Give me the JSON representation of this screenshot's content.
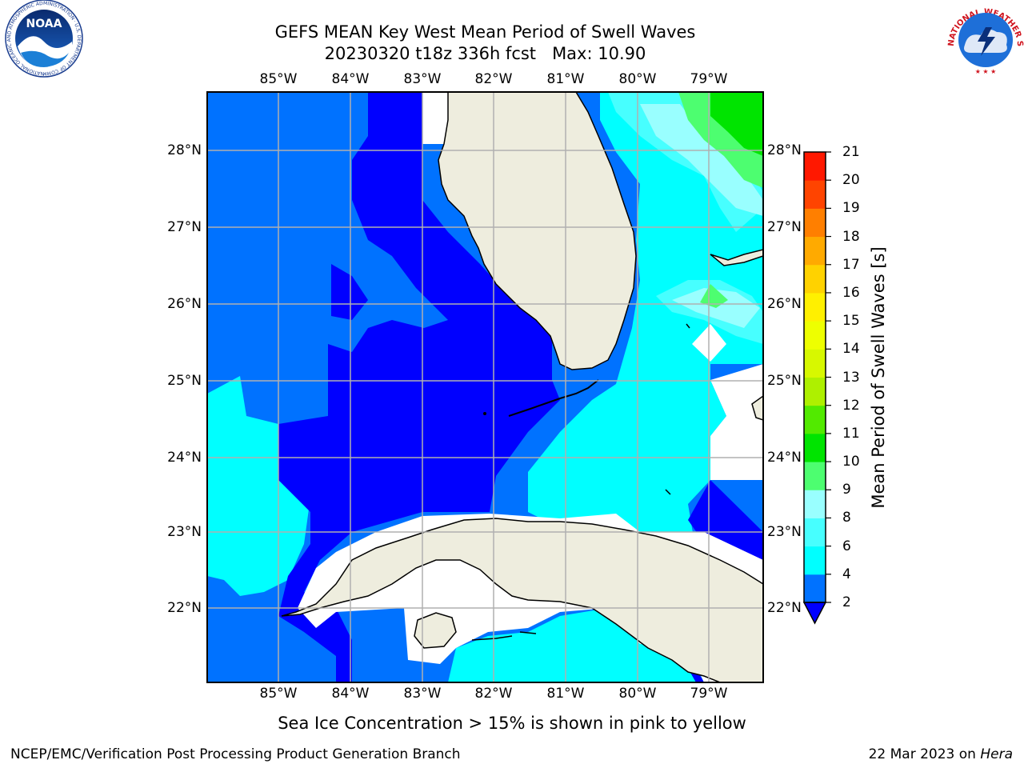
{
  "title_line1": "GEFS MEAN Key West Mean Period of Swell Waves",
  "title_line2": "20230320 t18z 336h fcst   Max: 10.90",
  "lon_labels": [
    "85°W",
    "84°W",
    "83°W",
    "82°W",
    "81°W",
    "80°W",
    "79°W"
  ],
  "lat_labels": [
    "28°N",
    "27°N",
    "26°N",
    "25°N",
    "24°N",
    "23°N",
    "22°N"
  ],
  "colorbar": {
    "label": "Mean Period of Swell Waves [s]",
    "ticks": [
      "21",
      "20",
      "19",
      "18",
      "17",
      "16",
      "15",
      "14",
      "13",
      "12",
      "11",
      "10",
      "9",
      "8",
      "6",
      "4",
      "2"
    ],
    "colors": [
      "#0000ff",
      "#0072ff",
      "#00ffff",
      "#47ffff",
      "#99ffff",
      "#4dfe70",
      "#00e400",
      "#52ea00",
      "#aef000",
      "#d7f800",
      "#eeff00",
      "#fff000",
      "#ffd200",
      "#ffaa00",
      "#ff7f00",
      "#ff4400",
      "#ff1800",
      "#ff0000"
    ]
  },
  "colors": {
    "level_2_4": "#0000ff",
    "level_4_6": "#0072ff",
    "level_6_8": "#00ffff",
    "level_8_9": "#47ffff",
    "level_9_10": "#99ffff",
    "level_10_11": "#4dfe70",
    "level_11_12": "#00e400",
    "land": "#eeedde",
    "grid": "#b0b0b0"
  },
  "bottom_note": "Sea Ice Concentration > 15% is shown in pink to yellow",
  "footer_left": "NCEP/EMC/Verification Post Processing Product Generation Branch",
  "footer_date": "22 Mar 2023 on ",
  "footer_host": "Hera",
  "logos": {
    "noaa_text": "NOAA",
    "noaa_ring": "NATIONAL OCEANIC AND ATMOSPHERIC ADMINISTRATION · U.S. DEPARTMENT OF COMMERCE",
    "nws_ring": "NATIONAL WEATHER SERVICE"
  }
}
